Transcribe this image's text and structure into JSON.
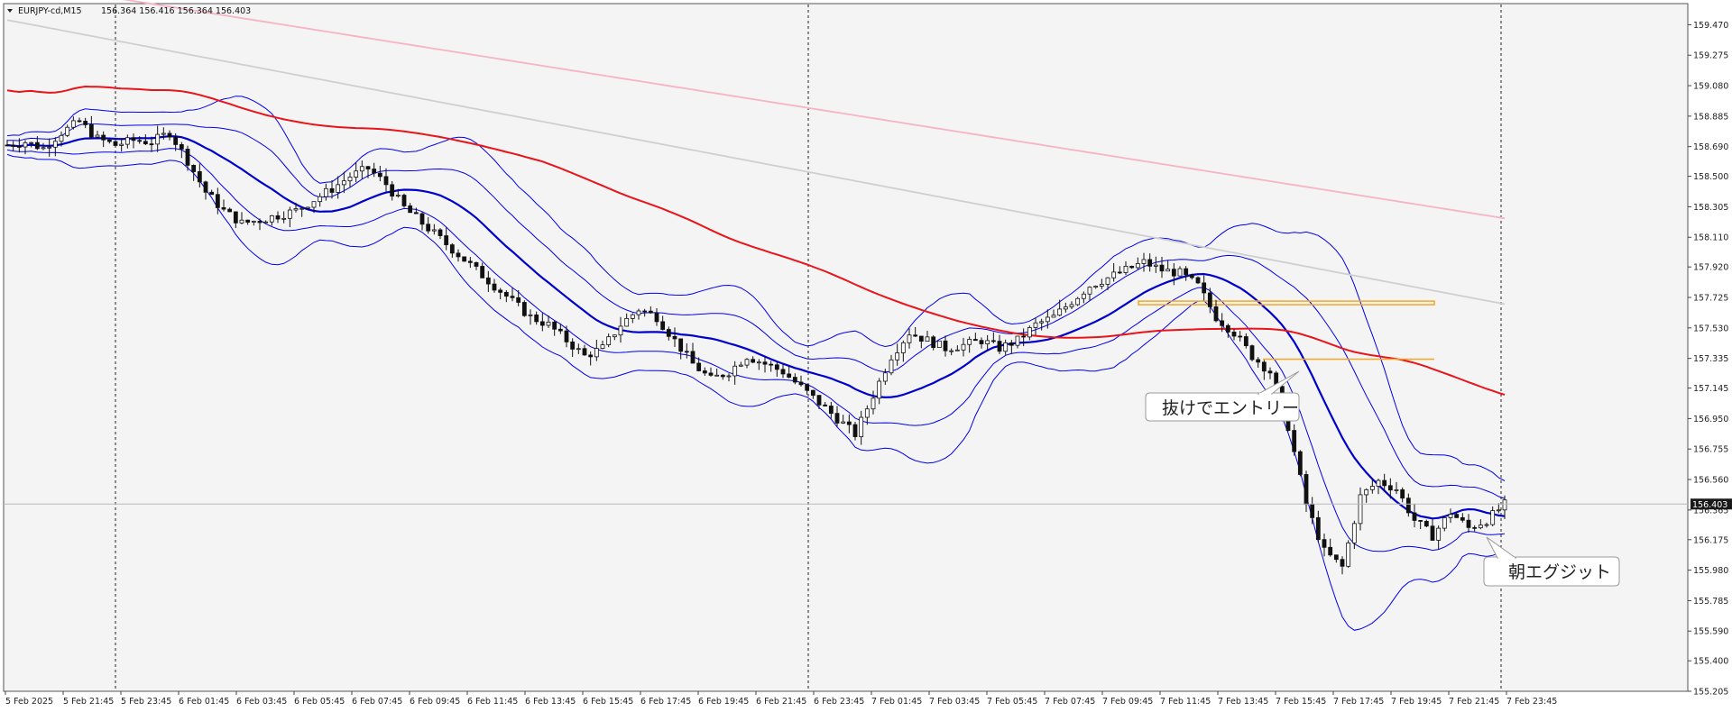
{
  "header": {
    "symbol": "EURJPY-cd,M15",
    "ohlc": "156.364 156.416 156.364 156.403"
  },
  "current_price_label": "156.403",
  "annotations": {
    "entry": "抜けでエントリー",
    "exit": "朝エグジット"
  },
  "colors": {
    "background": "#f4f4f4",
    "bollinger": "#0000ee",
    "ma_fast": "#0000cc",
    "ma_red": "#e8141a",
    "ma_gray": "#cfcfcf",
    "ma_pink": "#f6b4c4",
    "level_orange": "#f5a623"
  },
  "chart_data": {
    "type": "candlestick",
    "y_ticks": [
      "159.470",
      "159.275",
      "159.080",
      "158.885",
      "158.690",
      "158.500",
      "158.305",
      "158.110",
      "157.920",
      "157.725",
      "157.530",
      "157.335",
      "157.145",
      "156.950",
      "156.755",
      "156.560",
      "156.365",
      "156.175",
      "155.980",
      "155.785",
      "155.590",
      "155.400",
      "155.205"
    ],
    "ylim": [
      155.205,
      159.605
    ],
    "x_ticks": [
      "5 Feb 2025",
      "5 Feb 21:45",
      "5 Feb 23:45",
      "6 Feb 01:45",
      "6 Feb 03:45",
      "6 Feb 05:45",
      "6 Feb 07:45",
      "6 Feb 09:45",
      "6 Feb 11:45",
      "6 Feb 13:45",
      "6 Feb 15:45",
      "6 Feb 17:45",
      "6 Feb 19:45",
      "6 Feb 21:45",
      "6 Feb 23:45",
      "7 Feb 01:45",
      "7 Feb 03:45",
      "7 Feb 05:45",
      "7 Feb 07:45",
      "7 Feb 09:45",
      "7 Feb 11:45",
      "7 Feb 13:45",
      "7 Feb 15:45",
      "7 Feb 17:45",
      "7 Feb 19:45",
      "7 Feb 21:45",
      "7 Feb 23:45"
    ],
    "current_price": 156.403,
    "levels": [
      {
        "name": "upper",
        "value": 157.69
      },
      {
        "name": "lower",
        "value": 157.33
      }
    ],
    "close_path": [
      158.7,
      158.72,
      158.68,
      158.78,
      158.85,
      158.74,
      158.7,
      158.73,
      158.72,
      158.78,
      158.6,
      158.4,
      158.28,
      158.2,
      158.22,
      158.25,
      158.28,
      158.35,
      158.42,
      158.5,
      158.55,
      158.45,
      158.3,
      158.2,
      158.1,
      158.0,
      157.9,
      157.8,
      157.7,
      157.6,
      157.55,
      157.45,
      157.35,
      157.4,
      157.55,
      157.65,
      157.6,
      157.45,
      157.3,
      157.2,
      157.25,
      157.35,
      157.3,
      157.25,
      157.15,
      157.05,
      156.95,
      156.85,
      157.1,
      157.35,
      157.5,
      157.45,
      157.4,
      157.42,
      157.45,
      157.4,
      157.45,
      157.55,
      157.6,
      157.7,
      157.8,
      157.85,
      157.9,
      157.95,
      157.9,
      157.88,
      157.8,
      157.6,
      157.5,
      157.35,
      157.25,
      156.9,
      156.4,
      156.1,
      156.0,
      156.45,
      156.55,
      156.5,
      156.3,
      156.2,
      156.35,
      156.25,
      156.3,
      156.4
    ]
  }
}
